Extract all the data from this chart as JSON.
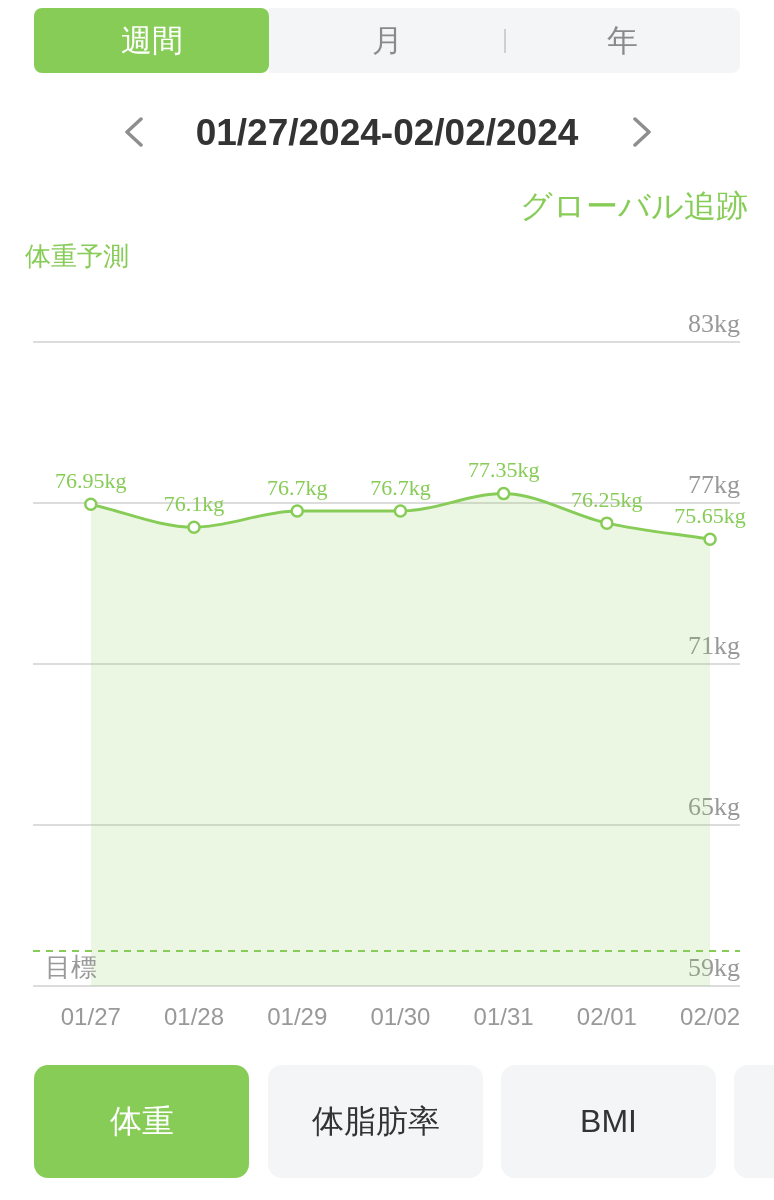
{
  "chart_data": {
    "type": "area",
    "title": "01/27/2024-02/02/2024",
    "subtitle": "体重予測",
    "categories": [
      "01/27",
      "01/28",
      "01/29",
      "01/30",
      "01/31",
      "02/01",
      "02/02"
    ],
    "values": [
      76.95,
      76.1,
      76.7,
      76.7,
      77.35,
      76.25,
      75.65
    ],
    "value_labels": [
      "76.95kg",
      "76.1kg",
      "76.7kg",
      "76.7kg",
      "77.35kg",
      "76.25kg",
      "75.65kg"
    ],
    "color": "#88cc58",
    "marker": "circle",
    "grid": "y",
    "ylim": [
      59,
      83
    ],
    "yticks": [
      {
        "value": 59,
        "label": "59kg"
      },
      {
        "value": 65,
        "label": "65kg"
      },
      {
        "value": 71,
        "label": "71kg"
      },
      {
        "value": 77,
        "label": "77kg"
      },
      {
        "value": 83,
        "label": "83kg"
      }
    ],
    "ref_lines": [
      {
        "axis": "y",
        "value": 60.3,
        "label": "目標",
        "color": "#88cc58",
        "line_style": "dashed"
      }
    ],
    "annotations": [
      "週間",
      "月",
      "年",
      "グローバル追跡",
      "体重",
      "体脂肪率",
      "BMI"
    ]
  }
}
